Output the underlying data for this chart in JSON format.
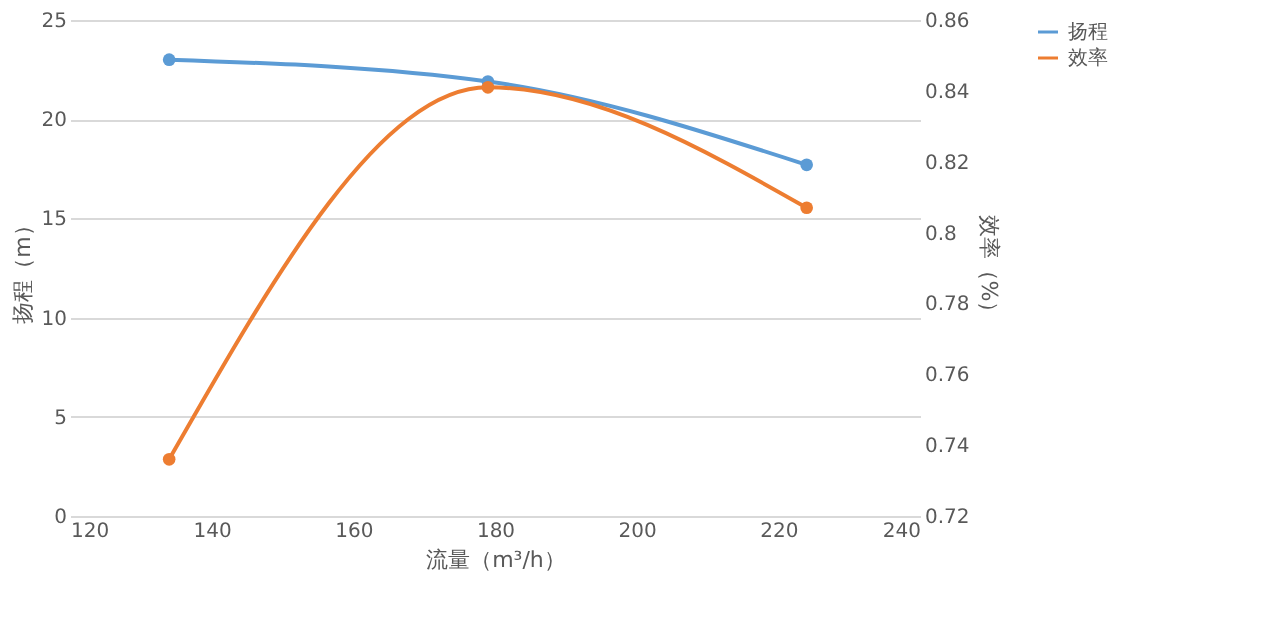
{
  "chart_data": {
    "type": "line",
    "xlabel": "流量（m³/h）",
    "ylabel": "扬程（m）",
    "y2label": "效率（%）",
    "xlim": [
      120,
      240
    ],
    "xticks": [
      120,
      140,
      160,
      180,
      200,
      220,
      240
    ],
    "ylim": [
      0,
      25
    ],
    "yticks": [
      0,
      5,
      10,
      15,
      20,
      25
    ],
    "y2lim": [
      0.72,
      0.86
    ],
    "y2ticks": [
      0.72,
      0.74,
      0.76,
      0.78,
      0.8,
      0.82,
      0.84,
      0.86
    ],
    "grid": "y",
    "legend": "right",
    "marker": "circle",
    "line_style": "solid",
    "series": [
      {
        "name": "扬程",
        "color": "#5b9bd5",
        "x": [
          134,
          179,
          224
        ],
        "values": [
          23,
          21.9,
          17.7
        ]
      },
      {
        "name": "效率",
        "color": "#ed7d31",
        "axis": "y2",
        "x": [
          134,
          179,
          224
        ],
        "values": [
          0.736,
          0.841,
          0.807
        ]
      }
    ]
  }
}
